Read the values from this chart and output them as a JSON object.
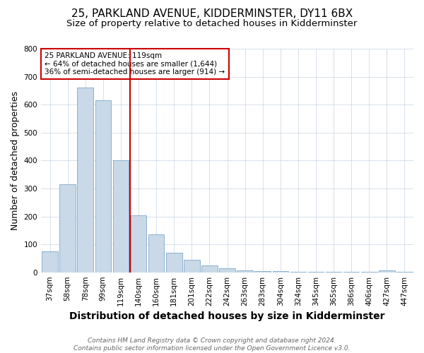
{
  "title": "25, PARKLAND AVENUE, KIDDERMINSTER, DY11 6BX",
  "subtitle": "Size of property relative to detached houses in Kidderminster",
  "xlabel": "Distribution of detached houses by size in Kidderminster",
  "ylabel": "Number of detached properties",
  "categories": [
    "37sqm",
    "58sqm",
    "78sqm",
    "99sqm",
    "119sqm",
    "140sqm",
    "160sqm",
    "181sqm",
    "201sqm",
    "222sqm",
    "242sqm",
    "263sqm",
    "283sqm",
    "304sqm",
    "324sqm",
    "345sqm",
    "365sqm",
    "386sqm",
    "406sqm",
    "427sqm",
    "447sqm"
  ],
  "values": [
    75,
    315,
    660,
    615,
    400,
    205,
    135,
    70,
    45,
    25,
    15,
    8,
    4,
    4,
    2,
    2,
    2,
    2,
    2,
    8,
    2
  ],
  "bar_color": "#c9d9e8",
  "bar_edge_color": "#7fa8c9",
  "red_line_index": 4,
  "annotation_line1": "25 PARKLAND AVENUE: 119sqm",
  "annotation_line2": "← 64% of detached houses are smaller (1,644)",
  "annotation_line3": "36% of semi-detached houses are larger (914) →",
  "annotation_box_color": "#ffffff",
  "annotation_box_edge_color": "#cc0000",
  "ylim": [
    0,
    800
  ],
  "yticks": [
    0,
    100,
    200,
    300,
    400,
    500,
    600,
    700,
    800
  ],
  "footnote_line1": "Contains HM Land Registry data © Crown copyright and database right 2024.",
  "footnote_line2": "Contains public sector information licensed under the Open Government Licence v3.0.",
  "background_color": "#ffffff",
  "grid_color": "#c8d4e3",
  "title_fontsize": 11,
  "subtitle_fontsize": 9.5,
  "xlabel_fontsize": 10,
  "ylabel_fontsize": 9,
  "tick_fontsize": 7.5,
  "annotation_fontsize": 7.5,
  "footnote_fontsize": 6.5
}
